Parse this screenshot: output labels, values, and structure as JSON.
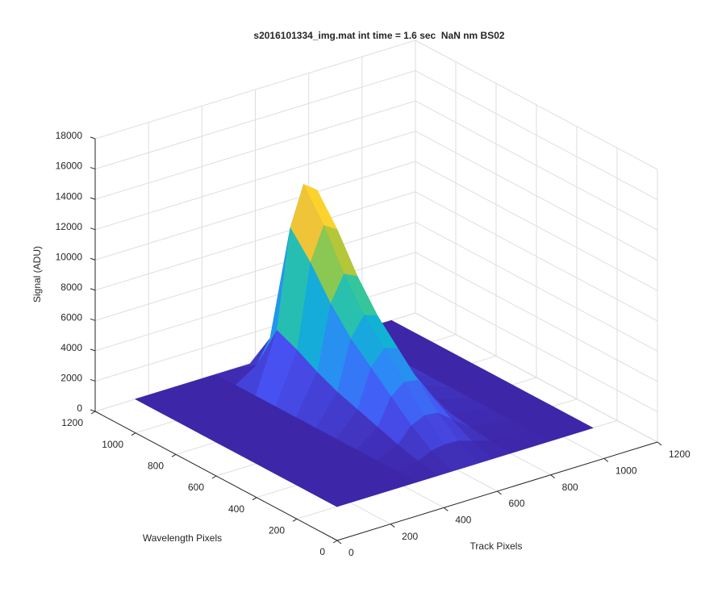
{
  "chart_data": {
    "type": "surface",
    "title": "s2016101334_img.mat int time = 1.6 sec  NaN nm BS02",
    "xlabel": "Track Pixels",
    "ylabel": "Wavelength Pixels",
    "zlabel": "Signal (ADU)",
    "xlim": [
      0,
      1200
    ],
    "ylim": [
      0,
      1200
    ],
    "zlim": [
      0,
      18000
    ],
    "xticks": [
      0,
      200,
      400,
      600,
      800,
      1000,
      1200
    ],
    "yticks": [
      0,
      200,
      400,
      600,
      800,
      1000,
      1200
    ],
    "zticks": [
      0,
      2000,
      4000,
      6000,
      8000,
      10000,
      12000,
      14000,
      16000,
      18000
    ],
    "grid": true,
    "colormap": "parula",
    "x": [
      150,
      300,
      450,
      530,
      580,
      630,
      680,
      730,
      800,
      950,
      1110
    ],
    "y": [
      200,
      300,
      400,
      500,
      600,
      700,
      800,
      900,
      1000,
      1100,
      1200
    ],
    "z": [
      [
        0,
        0,
        0,
        0,
        0,
        0,
        0,
        0,
        0,
        0,
        0
      ],
      [
        0,
        0,
        0,
        240,
        640,
        800,
        760,
        480,
        120,
        0,
        0
      ],
      [
        0,
        0,
        0,
        600,
        1600,
        2000,
        1900,
        1200,
        300,
        0,
        0
      ],
      [
        0,
        0,
        0,
        1050,
        2800,
        3500,
        3330,
        2100,
        530,
        0,
        0
      ],
      [
        0,
        0,
        0,
        1500,
        4000,
        5000,
        4750,
        3000,
        750,
        0,
        0
      ],
      [
        0,
        0,
        0,
        1950,
        5200,
        6500,
        6180,
        3900,
        980,
        0,
        0
      ],
      [
        0,
        0,
        0,
        2550,
        6800,
        8500,
        8080,
        5100,
        1280,
        0,
        0
      ],
      [
        0,
        0,
        0,
        3300,
        8800,
        11000,
        10450,
        6600,
        1650,
        0,
        0
      ],
      [
        0,
        0,
        0,
        3900,
        10400,
        13000,
        12350,
        7800,
        1950,
        0,
        0
      ],
      [
        0,
        0,
        0,
        900,
        2400,
        3000,
        2850,
        1800,
        450,
        0,
        0
      ],
      [
        0,
        0,
        0,
        0,
        0,
        0,
        0,
        0,
        0,
        0,
        0
      ]
    ]
  }
}
